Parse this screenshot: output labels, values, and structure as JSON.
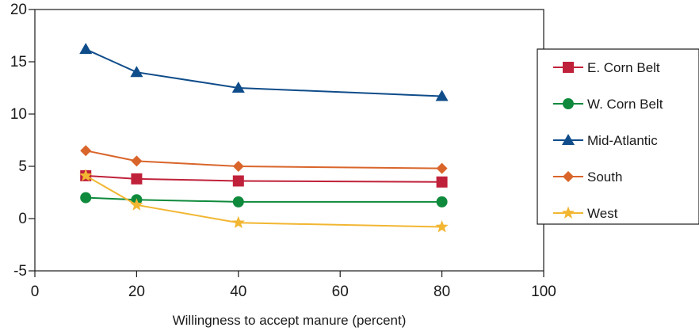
{
  "chart_data": {
    "type": "line",
    "title": "",
    "xlabel": "Willingness to accept manure (percent)",
    "ylabel": "",
    "xlim": [
      0,
      100
    ],
    "ylim": [
      -5,
      20
    ],
    "x_ticks": [
      0,
      20,
      40,
      60,
      80,
      100
    ],
    "y_ticks": [
      -5,
      0,
      5,
      10,
      15,
      20
    ],
    "x_tick_labels": [
      "0",
      "20",
      "40",
      "60",
      "80",
      "100"
    ],
    "y_tick_labels": [
      "-5",
      "0",
      "5",
      "10",
      "15",
      "20"
    ],
    "grid": false,
    "legend_position": "right",
    "x": [
      10,
      20,
      40,
      80
    ],
    "series": [
      {
        "name": "E. Corn Belt",
        "values": [
          4.1,
          3.8,
          3.6,
          3.5
        ],
        "color": "#c0213a",
        "marker": "square"
      },
      {
        "name": "W. Corn Belt",
        "values": [
          2.0,
          1.8,
          1.6,
          1.6
        ],
        "color": "#0f8a3c",
        "marker": "circle"
      },
      {
        "name": "Mid-Atlantic",
        "values": [
          16.2,
          14.0,
          12.5,
          11.7
        ],
        "color": "#0f4c8a",
        "marker": "triangle"
      },
      {
        "name": "South",
        "values": [
          6.5,
          5.5,
          5.0,
          4.8
        ],
        "color": "#d9652b",
        "marker": "diamond"
      },
      {
        "name": "West",
        "values": [
          4.1,
          1.3,
          -0.4,
          -0.8
        ],
        "color": "#f2b632",
        "marker": "star"
      }
    ]
  }
}
